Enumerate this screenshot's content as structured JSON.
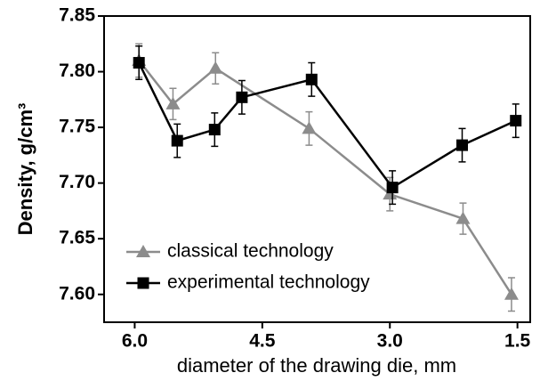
{
  "chart_data": {
    "type": "line",
    "x_label": "diameter of the drawing die, mm",
    "y_label": "Density, g/cm³",
    "xlim": [
      6.36,
      1.35
    ],
    "ylim": [
      7.575,
      7.85
    ],
    "xticks": [
      {
        "value": 6.0,
        "label": "6.0"
      },
      4.5,
      {
        "value": 3.0,
        "label": "3.0"
      },
      1.5
    ],
    "yticks": [
      {
        "value": 7.6,
        "label": "7.60"
      },
      7.65,
      {
        "value": 7.7,
        "label": "7.70"
      },
      7.75,
      {
        "value": 7.8,
        "label": "7.80"
      },
      7.85
    ],
    "legend": "lower left",
    "series": [
      {
        "name": "classical technology",
        "color": "#8c8c8c",
        "marker": "triangle",
        "x": [
          5.95,
          5.55,
          5.05,
          3.95,
          3.0,
          2.14,
          1.57
        ],
        "values": [
          7.81,
          7.771,
          7.803,
          7.749,
          7.69,
          7.668,
          7.6
        ],
        "errors": [
          0.015,
          0.014,
          0.014,
          0.015,
          0.015,
          0.014,
          0.015
        ]
      },
      {
        "name": "experimental technology",
        "color": "#000000",
        "marker": "square",
        "x": [
          5.95,
          5.5,
          5.06,
          4.74,
          3.92,
          2.97,
          2.15,
          1.52
        ],
        "values": [
          7.808,
          7.738,
          7.748,
          7.777,
          7.793,
          7.696,
          7.734,
          7.756
        ],
        "errors": [
          0.015,
          0.015,
          0.015,
          0.015,
          0.015,
          0.015,
          0.015,
          0.015
        ]
      }
    ]
  }
}
